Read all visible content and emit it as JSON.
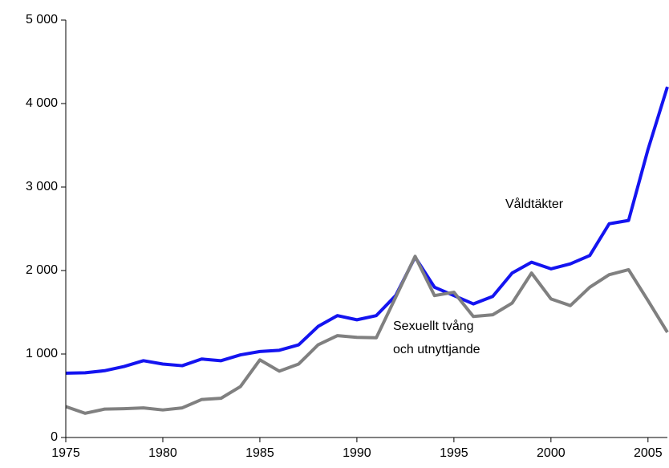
{
  "chart_data": {
    "type": "line",
    "x": [
      1975,
      1976,
      1977,
      1978,
      1979,
      1980,
      1981,
      1982,
      1983,
      1984,
      1985,
      1986,
      1987,
      1988,
      1989,
      1990,
      1991,
      1992,
      1993,
      1994,
      1995,
      1996,
      1997,
      1998,
      1999,
      2000,
      2001,
      2002,
      2003,
      2004,
      2005,
      2006
    ],
    "series": [
      {
        "color": "#1414f0",
        "values": [
          770,
          775,
          800,
          850,
          920,
          880,
          860,
          940,
          920,
          990,
          1030,
          1045,
          1110,
          1330,
          1460,
          1410,
          1460,
          1700,
          2160,
          1800,
          1700,
          1600,
          1690,
          1970,
          2100,
          2020,
          2080,
          2180,
          2560,
          2600,
          3450,
          4200
        ]
      },
      {
        "color": "#808080",
        "values": [
          370,
          290,
          340,
          345,
          355,
          330,
          355,
          455,
          470,
          610,
          930,
          795,
          880,
          1110,
          1220,
          1200,
          1195,
          1680,
          2170,
          1700,
          1740,
          1450,
          1470,
          1610,
          1970,
          1660,
          1580,
          1800,
          1950,
          2010,
          1640,
          1260
        ]
      }
    ],
    "annotations": [
      "Våldtäkter",
      "Sexuellt tvång",
      "och utnyttjande"
    ],
    "xlim": [
      1975,
      2006
    ],
    "xticks": [
      1975,
      1980,
      1985,
      1990,
      1995,
      2000,
      2005
    ],
    "ylim": [
      0,
      5000
    ],
    "yticks": [
      0,
      {
        "value": 1000,
        "label": "1 000"
      },
      {
        "value": 2000,
        "label": "2 000"
      },
      {
        "value": 3000,
        "label": "3 000"
      },
      {
        "value": 4000,
        "label": "4 000"
      },
      {
        "value": 5000,
        "label": "5 000"
      }
    ],
    "grid": false
  }
}
